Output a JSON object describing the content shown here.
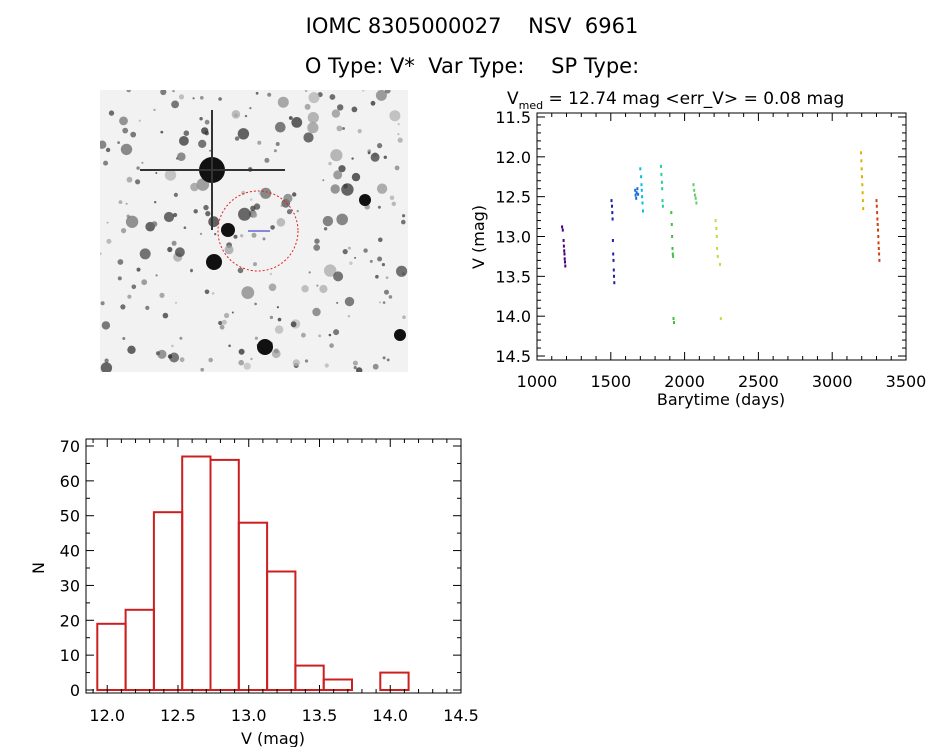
{
  "header": {
    "title_line1": "IOMC 8305000027    NSV  6961",
    "title_line2": "O Type: V*  Var Type:    SP Type:"
  },
  "chart_data": [
    {
      "type": "scatter",
      "title_prefix": "V",
      "title_subscript": "med",
      "title_suffix": " = 12.74 mag <err_V> = 0.08 mag",
      "xlabel": "Barytime (days)",
      "ylabel": "V (mag)",
      "xlim": [
        1000,
        3500
      ],
      "ylim": [
        14.55,
        11.45
      ],
      "y_inverted": true,
      "x_ticks": [
        1000,
        1500,
        2000,
        2500,
        3000,
        3500
      ],
      "x_tick_labels": [
        "1000",
        "1500",
        "2000",
        "2500",
        "3000",
        "3500"
      ],
      "y_ticks": [
        11.5,
        12.0,
        12.5,
        13.0,
        13.5,
        14.0,
        14.5
      ],
      "y_tick_labels": [
        "11.5",
        "12.0",
        "12.5",
        "13.0",
        "13.5",
        "14.0",
        "14.5"
      ],
      "series": [
        {
          "color": "#4b0082",
          "points": [
            [
              1170,
              12.88
            ],
            [
              1175,
              12.92
            ],
            [
              1180,
              13.05
            ],
            [
              1182,
              13.12
            ],
            [
              1184,
              13.18
            ],
            [
              1186,
              13.22
            ],
            [
              1188,
              13.28
            ],
            [
              1190,
              13.32
            ],
            [
              1192,
              13.37
            ]
          ]
        },
        {
          "color": "#2020a0",
          "points": [
            [
              1505,
              12.55
            ],
            [
              1508,
              12.62
            ],
            [
              1510,
              12.7
            ],
            [
              1512,
              12.78
            ],
            [
              1514,
              13.05
            ],
            [
              1516,
              13.22
            ],
            [
              1518,
              13.3
            ],
            [
              1520,
              13.42
            ],
            [
              1522,
              13.5
            ],
            [
              1524,
              13.58
            ]
          ]
        },
        {
          "color": "#1a6fd6",
          "points": [
            [
              1665,
              12.42
            ],
            [
              1668,
              12.48
            ],
            [
              1672,
              12.52
            ],
            [
              1675,
              12.45
            ],
            [
              1680,
              12.4
            ],
            [
              1685,
              12.47
            ]
          ]
        },
        {
          "color": "#00c0e0",
          "points": [
            [
              1700,
              12.15
            ],
            [
              1705,
              12.25
            ],
            [
              1708,
              12.35
            ],
            [
              1710,
              12.42
            ],
            [
              1712,
              12.5
            ],
            [
              1715,
              12.58
            ],
            [
              1718,
              12.68
            ]
          ]
        },
        {
          "color": "#20d0a0",
          "points": [
            [
              1840,
              12.12
            ],
            [
              1843,
              12.22
            ],
            [
              1846,
              12.32
            ],
            [
              1848,
              12.4
            ],
            [
              1850,
              12.55
            ],
            [
              1853,
              12.62
            ]
          ]
        },
        {
          "color": "#40c040",
          "points": [
            [
              1910,
              12.7
            ],
            [
              1913,
              12.85
            ],
            [
              1915,
              13.0
            ],
            [
              1918,
              13.15
            ],
            [
              1920,
              13.22
            ],
            [
              1922,
              13.25
            ],
            [
              1925,
              14.03
            ],
            [
              1928,
              14.08
            ]
          ]
        },
        {
          "color": "#60d060",
          "points": [
            [
              2060,
              12.35
            ],
            [
              2065,
              12.42
            ],
            [
              2070,
              12.48
            ],
            [
              2075,
              12.52
            ],
            [
              2080,
              12.58
            ]
          ]
        },
        {
          "color": "#c8d840",
          "points": [
            [
              2210,
              12.8
            ],
            [
              2215,
              12.9
            ],
            [
              2218,
              13.0
            ],
            [
              2220,
              13.15
            ],
            [
              2225,
              13.25
            ],
            [
              2240,
              13.35
            ],
            [
              2245,
              14.03
            ]
          ]
        },
        {
          "color": "#e0b000",
          "points": [
            [
              3195,
              11.95
            ],
            [
              3198,
              12.05
            ],
            [
              3200,
              12.15
            ],
            [
              3202,
              12.25
            ],
            [
              3204,
              12.35
            ],
            [
              3206,
              12.45
            ],
            [
              3208,
              12.55
            ],
            [
              3210,
              12.65
            ]
          ]
        },
        {
          "color": "#d04010",
          "points": [
            [
              3300,
              12.55
            ],
            [
              3302,
              12.62
            ],
            [
              3304,
              12.7
            ],
            [
              3306,
              12.78
            ],
            [
              3308,
              12.85
            ],
            [
              3310,
              12.92
            ],
            [
              3312,
              13.0
            ],
            [
              3314,
              13.08
            ],
            [
              3316,
              13.15
            ],
            [
              3318,
              13.22
            ],
            [
              3320,
              13.3
            ]
          ]
        }
      ]
    },
    {
      "type": "bar",
      "title": "",
      "xlabel": "V (mag)",
      "ylabel": "N",
      "xlim": [
        11.85,
        14.5
      ],
      "ylim": [
        0,
        70
      ],
      "bin_width": 0.2,
      "bin_starts": [
        11.93,
        12.13,
        12.33,
        12.53,
        12.73,
        12.93,
        13.13,
        13.33,
        13.53,
        13.73,
        13.93
      ],
      "values": [
        19,
        23,
        51,
        67,
        66,
        48,
        34,
        7,
        3,
        0,
        5
      ],
      "bar_color": "#cc2020",
      "x_ticks": [
        12.0,
        12.5,
        13.0,
        13.5,
        14.0,
        14.5
      ],
      "x_tick_labels": [
        "12.0",
        "12.5",
        "13.0",
        "13.5",
        "14.0",
        "14.5"
      ],
      "y_ticks": [
        0,
        10,
        20,
        30,
        40,
        50,
        60,
        70
      ],
      "y_tick_labels": [
        "0",
        "10",
        "20",
        "30",
        "40",
        "50",
        "60",
        "70"
      ]
    }
  ],
  "image": {
    "circle_color": "#e02020"
  }
}
